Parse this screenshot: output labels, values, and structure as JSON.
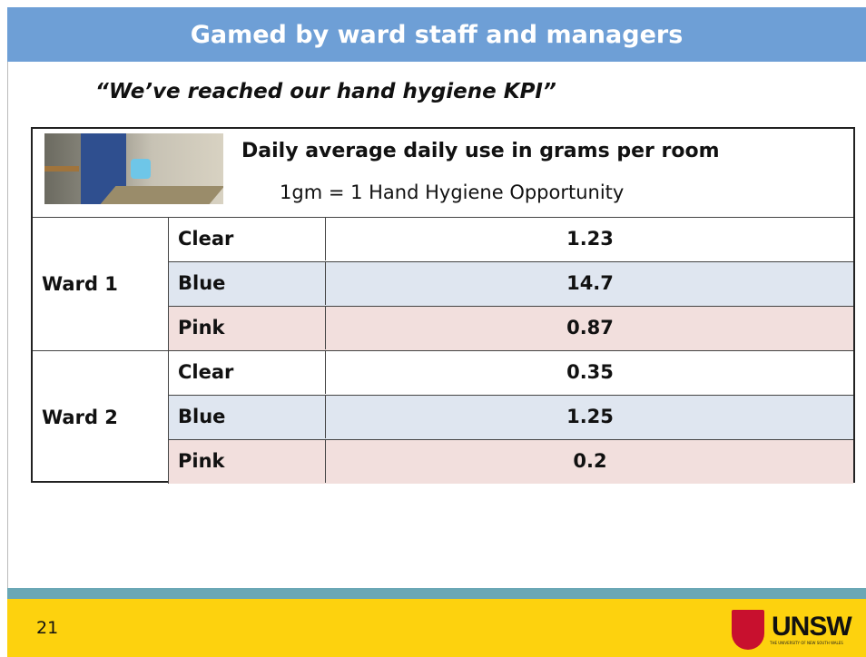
{
  "header": {
    "title": "Gamed by ward staff and managers"
  },
  "quote": "“We’ve reached our hand hygiene KPI”",
  "table": {
    "caption": {
      "title": "Daily average daily use in grams per room",
      "subtitle": "1gm = 1 Hand Hygiene Opportunity"
    },
    "groups": [
      {
        "name": "Ward 1",
        "rows": [
          {
            "label": "Clear",
            "value": 1.23
          },
          {
            "label": "Blue",
            "value": 14.7
          },
          {
            "label": "Pink",
            "value": 0.87
          }
        ]
      },
      {
        "name": "Ward 2",
        "rows": [
          {
            "label": "Clear",
            "value": 0.35
          },
          {
            "label": "Blue",
            "value": 1.25
          },
          {
            "label": "Pink",
            "value": 0.2
          }
        ]
      }
    ]
  },
  "footer": {
    "page": "21",
    "logo": "UNSW",
    "logo_subtitle": "THE UNIVERSITY OF NEW SOUTH WALES"
  }
}
